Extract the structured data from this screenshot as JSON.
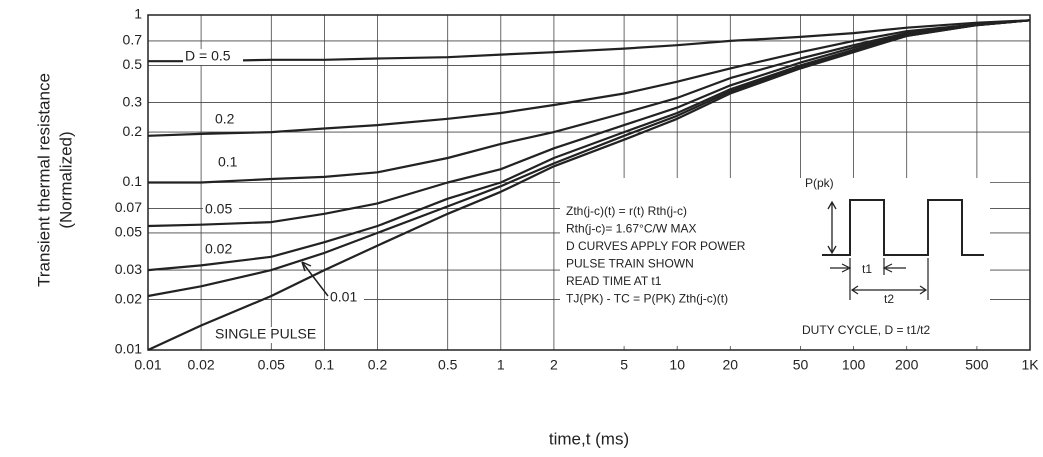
{
  "chart_data": {
    "type": "line",
    "y_label": [
      "Transient thermal resistance",
      "(Normalized)"
    ],
    "x_label": "time,t (ms)",
    "x_log": true,
    "y_log": true,
    "grid": true,
    "color": "#222222",
    "x": [
      0.01,
      0.02,
      0.05,
      0.1,
      0.2,
      0.5,
      1,
      2,
      5,
      10,
      20,
      50,
      100,
      200,
      500,
      1000
    ],
    "xlim": [
      0.01,
      1000
    ],
    "xticks": [
      0.01,
      0.02,
      0.05,
      0.1,
      0.2,
      0.5,
      1,
      2,
      5,
      10,
      20,
      50,
      100,
      200,
      500,
      {
        "value": 1000,
        "label": "1K"
      }
    ],
    "ylim": [
      0.01,
      1
    ],
    "yticks": [
      0.01,
      0.02,
      0.03,
      0.05,
      0.07,
      0.1,
      0.2,
      0.3,
      0.5,
      0.7,
      1
    ],
    "series": [
      {
        "name": "D = 0.5",
        "values": [
          0.53,
          0.53,
          0.54,
          0.54,
          0.55,
          0.56,
          0.58,
          0.6,
          0.63,
          0.66,
          0.7,
          0.74,
          0.78,
          0.84,
          0.9,
          0.93
        ]
      },
      {
        "name": "0.2",
        "values": [
          0.19,
          0.195,
          0.2,
          0.21,
          0.22,
          0.24,
          0.26,
          0.29,
          0.34,
          0.4,
          0.48,
          0.6,
          0.7,
          0.8,
          0.88,
          0.93
        ]
      },
      {
        "name": "0.1",
        "values": [
          0.1,
          0.1,
          0.105,
          0.108,
          0.115,
          0.14,
          0.17,
          0.2,
          0.26,
          0.32,
          0.42,
          0.55,
          0.66,
          0.78,
          0.88,
          0.93
        ]
      },
      {
        "name": "0.05",
        "values": [
          0.055,
          0.056,
          0.058,
          0.065,
          0.075,
          0.1,
          0.12,
          0.16,
          0.22,
          0.28,
          0.38,
          0.52,
          0.64,
          0.77,
          0.88,
          0.93
        ]
      },
      {
        "name": "0.02",
        "values": [
          0.03,
          0.032,
          0.036,
          0.044,
          0.055,
          0.08,
          0.1,
          0.14,
          0.2,
          0.26,
          0.36,
          0.5,
          0.62,
          0.76,
          0.87,
          0.93
        ]
      },
      {
        "name": "0.01",
        "values": [
          0.021,
          0.024,
          0.03,
          0.038,
          0.05,
          0.072,
          0.095,
          0.13,
          0.19,
          0.25,
          0.35,
          0.49,
          0.61,
          0.75,
          0.87,
          0.93
        ]
      },
      {
        "name": "SINGLE PULSE",
        "values": [
          0.01,
          0.014,
          0.021,
          0.03,
          0.042,
          0.065,
          0.088,
          0.125,
          0.18,
          0.24,
          0.34,
          0.48,
          0.6,
          0.75,
          0.87,
          0.93
        ]
      }
    ],
    "annotations": [
      "Zth(j-c)(t) = r(t) Rth(j-c)",
      "Rth(j-c)= 1.67°C/W MAX",
      "D CURVES APPLY FOR POWER",
      "PULSE TRAIN SHOWN",
      "READ TIME AT t1",
      "TJ(PK) - TC = P(PK) Zth(j-c)(t)"
    ],
    "diagram": {
      "peak": "P(pk)",
      "t1": "t1",
      "t2": "t2",
      "duty": "DUTY CYCLE, D = t1/t2"
    }
  }
}
